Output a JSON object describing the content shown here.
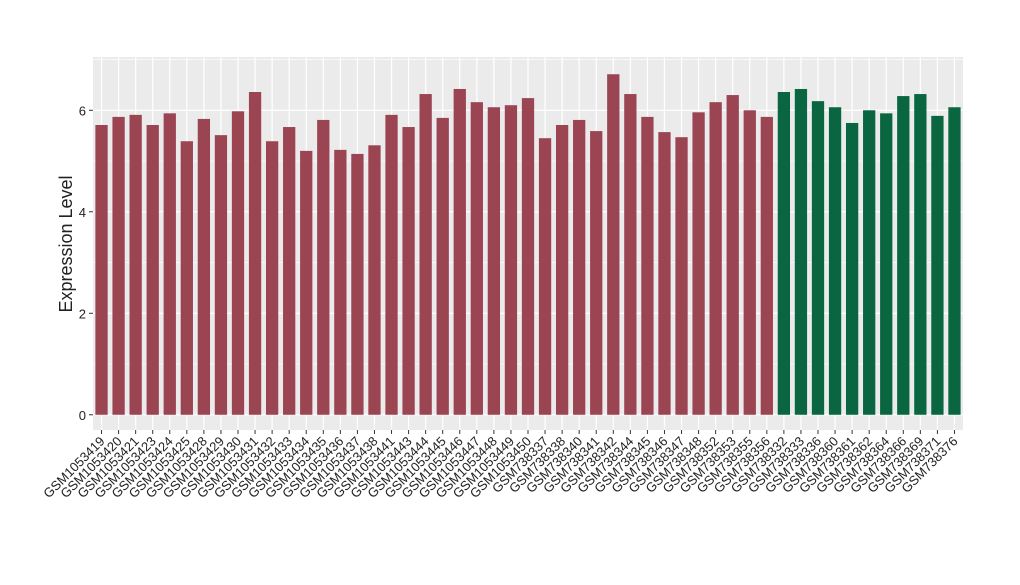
{
  "chart_data": {
    "type": "bar",
    "y_label": "Expression Level",
    "categories": [
      "GSM1053419",
      "GSM1053420",
      "GSM1053421",
      "GSM1053423",
      "GSM1053424",
      "GSM1053425",
      "GSM1053428",
      "GSM1053429",
      "GSM1053430",
      "GSM1053431",
      "GSM1053432",
      "GSM1053433",
      "GSM1053434",
      "GSM1053435",
      "GSM1053436",
      "GSM1053437",
      "GSM1053438",
      "GSM1053441",
      "GSM1053443",
      "GSM1053444",
      "GSM1053445",
      "GSM1053446",
      "GSM1053447",
      "GSM1053448",
      "GSM1053449",
      "GSM1053450",
      "GSM738337",
      "GSM738338",
      "GSM738340",
      "GSM738341",
      "GSM738342",
      "GSM738344",
      "GSM738345",
      "GSM738346",
      "GSM738347",
      "GSM738348",
      "GSM738352",
      "GSM738353",
      "GSM738355",
      "GSM738356",
      "GSM738332",
      "GSM738333",
      "GSM738336",
      "GSM738360",
      "GSM738361",
      "GSM738362",
      "GSM738364",
      "GSM738366",
      "GSM738369",
      "GSM738371",
      "GSM738376"
    ],
    "values": [
      5.71,
      5.87,
      5.91,
      5.71,
      5.94,
      5.39,
      5.83,
      5.51,
      5.98,
      6.36,
      5.39,
      5.67,
      5.2,
      5.81,
      5.22,
      5.14,
      5.31,
      5.91,
      5.67,
      6.32,
      5.85,
      6.42,
      6.16,
      6.06,
      6.1,
      6.24,
      5.45,
      5.71,
      5.81,
      5.59,
      6.71,
      6.32,
      5.87,
      5.57,
      5.47,
      5.96,
      6.16,
      6.3,
      6.0,
      5.87,
      6.36,
      6.42,
      6.18,
      6.06,
      5.75,
      6.0,
      5.94,
      6.28,
      6.32,
      5.89,
      6.06
    ],
    "colors": [
      "#9b4452",
      "#9b4452",
      "#9b4452",
      "#9b4452",
      "#9b4452",
      "#9b4452",
      "#9b4452",
      "#9b4452",
      "#9b4452",
      "#9b4452",
      "#9b4452",
      "#9b4452",
      "#9b4452",
      "#9b4452",
      "#9b4452",
      "#9b4452",
      "#9b4452",
      "#9b4452",
      "#9b4452",
      "#9b4452",
      "#9b4452",
      "#9b4452",
      "#9b4452",
      "#9b4452",
      "#9b4452",
      "#9b4452",
      "#9b4452",
      "#9b4452",
      "#9b4452",
      "#9b4452",
      "#9b4452",
      "#9b4452",
      "#9b4452",
      "#9b4452",
      "#9b4452",
      "#9b4452",
      "#9b4452",
      "#9b4452",
      "#9b4452",
      "#9b4452",
      "#0a6640",
      "#0a6640",
      "#0a6640",
      "#0a6640",
      "#0a6640",
      "#0a6640",
      "#0a6640",
      "#0a6640",
      "#0a6640",
      "#0a6640",
      "#0a6640"
    ],
    "ylim": [
      -0.3,
      7.05
    ],
    "yticks": [
      0,
      2,
      4,
      6
    ],
    "grid": true
  }
}
